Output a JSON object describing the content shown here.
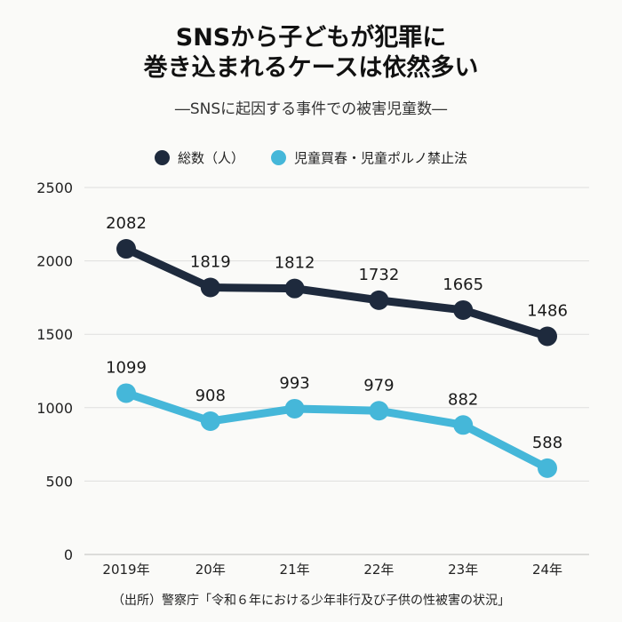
{
  "title_lines": [
    "SNSから子どもが犯罪に",
    "巻き込まれるケースは依然多い"
  ],
  "subtitle": "―SNSに起因する事件での被害児童数―",
  "source": "（出所）警察庁「令和６年における少年非行及び子供の性被害の状況」",
  "colors": {
    "series_total": "#1e2a3d",
    "series_child": "#45b7d9",
    "grid": "#dedede"
  },
  "chart_data": {
    "type": "line",
    "categories": [
      "2019年",
      "20年",
      "21年",
      "22年",
      "23年",
      "24年"
    ],
    "series": [
      {
        "name": "総数（人）",
        "values": [
          2082,
          1819,
          1812,
          1732,
          1665,
          1486
        ]
      },
      {
        "name": "児童買春・児童ポルノ禁止法",
        "values": [
          1099,
          908,
          993,
          979,
          882,
          588
        ]
      }
    ],
    "ylim": [
      0,
      2500
    ],
    "yticks": [
      0,
      500,
      1000,
      1500,
      2000,
      2500
    ],
    "grid": true,
    "legend_position": "top-center",
    "data_labels": true
  }
}
